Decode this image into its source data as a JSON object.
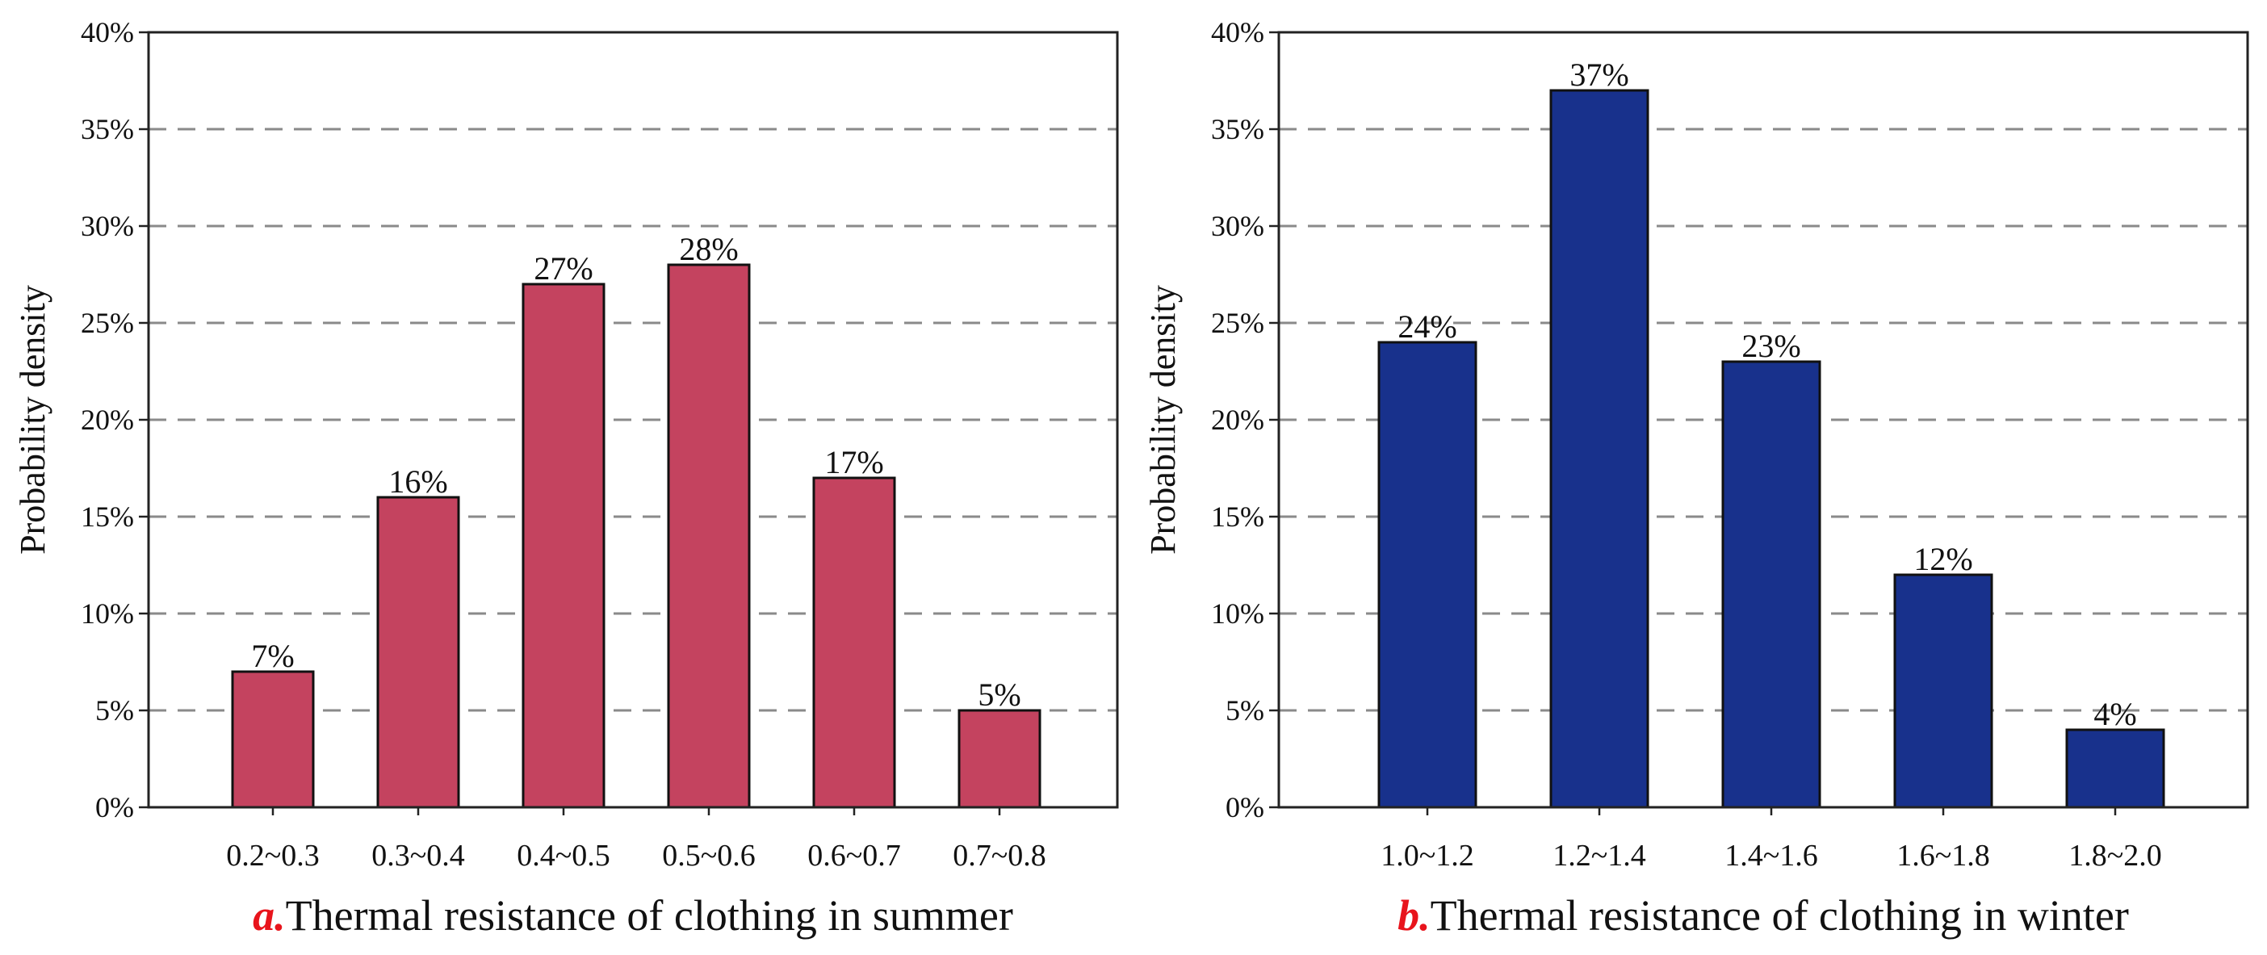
{
  "chart_data": [
    {
      "type": "bar",
      "panel_letter": "a.",
      "title": "Thermal resistance of clothing in summer",
      "xlabel": "",
      "ylabel": "Probability density",
      "categories": [
        "0.2~0.3",
        "0.3~0.4",
        "0.4~0.5",
        "0.5~0.6",
        "0.6~0.7",
        "0.7~0.8"
      ],
      "values": [
        7,
        16,
        27,
        28,
        17,
        5
      ],
      "data_labels": [
        "7%",
        "16%",
        "27%",
        "28%",
        "17%",
        "5%"
      ],
      "ylim": [
        0,
        40
      ],
      "yticks": [
        0,
        5,
        10,
        15,
        20,
        25,
        30,
        35,
        40
      ],
      "ytick_labels": [
        "0%",
        "5%",
        "10%",
        "15%",
        "20%",
        "25%",
        "30%",
        "35%",
        "40%"
      ],
      "grid": "dashed horizontal",
      "bar_color": "#c4435f",
      "letter_color": "#e8141c"
    },
    {
      "type": "bar",
      "panel_letter": "b.",
      "title": "Thermal resistance of clothing in winter",
      "xlabel": "",
      "ylabel": "Probability density",
      "categories": [
        "1.0~1.2",
        "1.2~1.4",
        "1.4~1.6",
        "1.6~1.8",
        "1.8~2.0"
      ],
      "values": [
        24,
        37,
        23,
        12,
        4
      ],
      "data_labels": [
        "24%",
        "37%",
        "23%",
        "12%",
        "4%"
      ],
      "ylim": [
        0,
        40
      ],
      "yticks": [
        0,
        5,
        10,
        15,
        20,
        25,
        30,
        35,
        40
      ],
      "ytick_labels": [
        "0%",
        "5%",
        "10%",
        "15%",
        "20%",
        "25%",
        "30%",
        "35%",
        "40%"
      ],
      "grid": "dashed horizontal",
      "bar_color": "#18318c",
      "letter_color": "#e8141c"
    }
  ]
}
